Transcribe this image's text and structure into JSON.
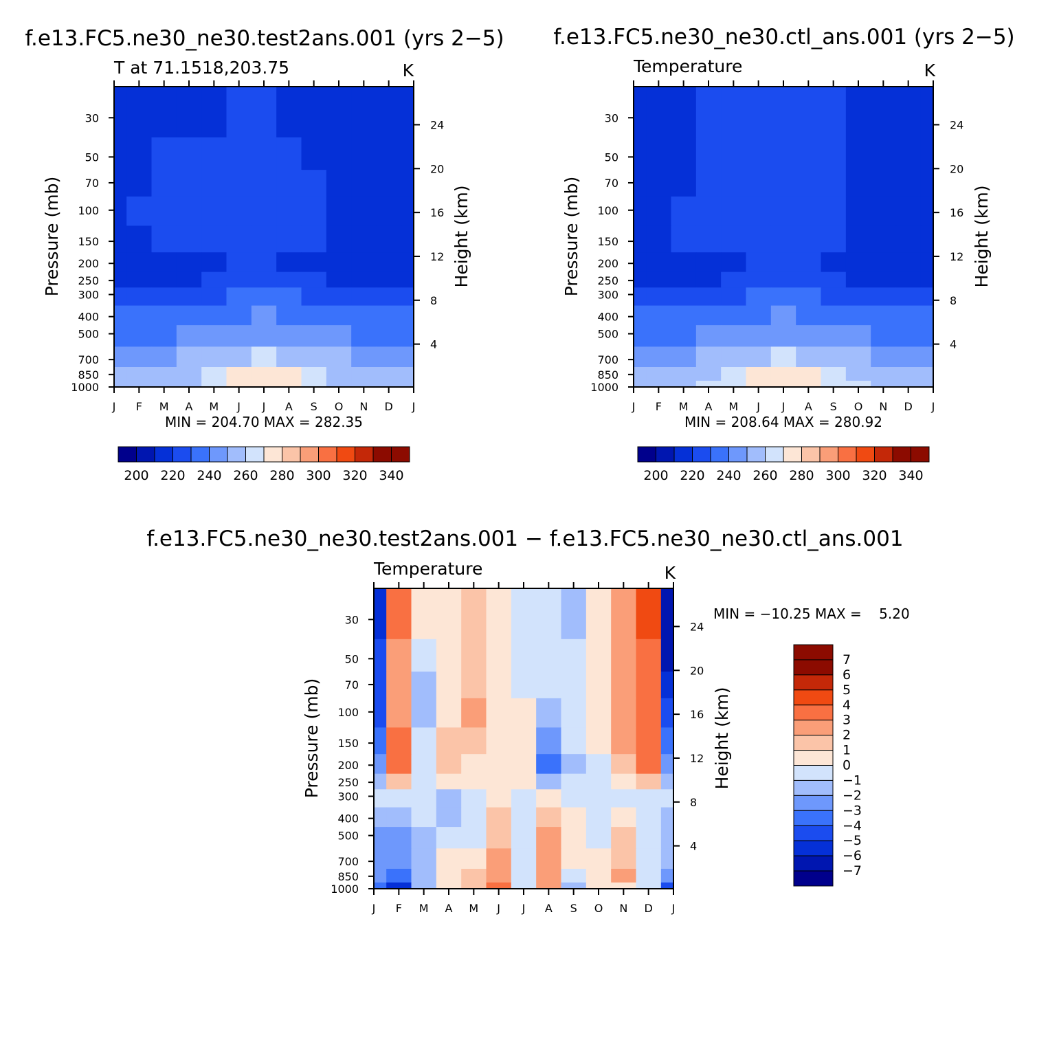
{
  "colors": {
    "fill_levels": [
      "#00008c",
      "#0016b0",
      "#0530d7",
      "#1b4cef",
      "#3a72fb",
      "#6e98fc",
      "#a1bdfc",
      "#d2e3fc",
      "#fde6d6",
      "#fbc4a8",
      "#fa9e78",
      "#f97042",
      "#f04a12",
      "#c42808",
      "#8c0b00"
    ]
  },
  "chart_data": [
    {
      "id": "test",
      "type": "heatmap",
      "title": "f.e13.FC5.ne30_ne30.test2ans.001 (yrs 2−5)",
      "left_string": "T at 71.1518,203.75",
      "right_string": "K",
      "xlabel": "",
      "ylabel": "Pressure (mb)",
      "ylabel_right": "Height (km)",
      "x_ticks": [
        "J",
        "F",
        "M",
        "A",
        "M",
        "J",
        "J",
        "A",
        "S",
        "O",
        "N",
        "D",
        "J"
      ],
      "y_ticks": [
        "30",
        "50",
        "70",
        "100",
        "150",
        "200",
        "250",
        "300",
        "400",
        "500",
        "700",
        "850",
        "1000"
      ],
      "y_ticks_right": [
        "24",
        "20",
        "16",
        "12",
        "8",
        "4"
      ],
      "ylim": [
        1000,
        20
      ],
      "min_max_text": "MIN = 204.70  MAX = 282.35",
      "min": 204.7,
      "max": 282.35,
      "levels": [
        200,
        210,
        220,
        230,
        240,
        250,
        260,
        270,
        280,
        290,
        300,
        310,
        320,
        330,
        340
      ],
      "colorbar_labels": [
        "200",
        "220",
        "240",
        "260",
        "280",
        "300",
        "320",
        "340"
      ],
      "color_by_level": [
        "#00008c",
        "#0016b0",
        "#0530d7",
        "#1b4cef",
        "#3a72fb",
        "#6e98fc",
        "#a1bdfc",
        "#d2e3fc",
        "#fde6d6",
        "#fbc4a8",
        "#fa9e78",
        "#f97042",
        "#f04a12",
        "#c42808",
        "#8c0b00",
        "#8c0b00"
      ],
      "z": [
        [
          211,
          216,
          218,
          218,
          219,
          220,
          220,
          219,
          219,
          218,
          218,
          218,
          217
        ],
        [
          214,
          219,
          220,
          220,
          220,
          221,
          221,
          220,
          219,
          218,
          218,
          218,
          215
        ],
        [
          215,
          219,
          220,
          221,
          221,
          222,
          222,
          221,
          220,
          219,
          219,
          219,
          218
        ],
        [
          217,
          220,
          221,
          221,
          221,
          222,
          222,
          221,
          220,
          219,
          219,
          219,
          218
        ],
        [
          218,
          219,
          220,
          221,
          221,
          221,
          221,
          221,
          221,
          219,
          219,
          219,
          218
        ],
        [
          218,
          218,
          218,
          219,
          219,
          221,
          221,
          219,
          218,
          218,
          218,
          218,
          218
        ],
        [
          219,
          219,
          219,
          219,
          221,
          222,
          222,
          222,
          221,
          219,
          219,
          219,
          219
        ],
        [
          222,
          222,
          222,
          224,
          227,
          230,
          231,
          230,
          227,
          224,
          222,
          222,
          222
        ],
        [
          231,
          231,
          231,
          233,
          236,
          239,
          240,
          239,
          236,
          233,
          231,
          231,
          231
        ],
        [
          238,
          238,
          238,
          240,
          243,
          245,
          246,
          245,
          243,
          240,
          238,
          238,
          238
        ],
        [
          248,
          248,
          248,
          250,
          254,
          259,
          262,
          259,
          254,
          250,
          248,
          248,
          248
        ],
        [
          254,
          254,
          254,
          256,
          263,
          271,
          274,
          270,
          263,
          256,
          254,
          254,
          254
        ],
        [
          256,
          256,
          256,
          258,
          265,
          274,
          277,
          273,
          265,
          258,
          256,
          256,
          256
        ]
      ]
    },
    {
      "id": "ctl",
      "type": "heatmap",
      "title": "f.e13.FC5.ne30_ne30.ctl_ans.001 (yrs 2−5)",
      "left_string": "Temperature",
      "right_string": "K",
      "xlabel": "",
      "ylabel": "Pressure (mb)",
      "ylabel_right": "Height (km)",
      "x_ticks": [
        "J",
        "F",
        "M",
        "A",
        "M",
        "J",
        "J",
        "A",
        "S",
        "O",
        "N",
        "D",
        "J"
      ],
      "y_ticks": [
        "30",
        "50",
        "70",
        "100",
        "150",
        "200",
        "250",
        "300",
        "400",
        "500",
        "700",
        "850",
        "1000"
      ],
      "y_ticks_right": [
        "24",
        "20",
        "16",
        "12",
        "8",
        "4"
      ],
      "ylim": [
        1000,
        20
      ],
      "min_max_text": "MIN = 208.64  MAX = 280.92",
      "min": 208.64,
      "max": 280.92,
      "levels": [
        200,
        210,
        220,
        230,
        240,
        250,
        260,
        270,
        280,
        290,
        300,
        310,
        320,
        330,
        340
      ],
      "colorbar_labels": [
        "200",
        "220",
        "240",
        "260",
        "280",
        "300",
        "320",
        "340"
      ],
      "color_by_level": [
        "#00008c",
        "#0016b0",
        "#0530d7",
        "#1b4cef",
        "#3a72fb",
        "#6e98fc",
        "#a1bdfc",
        "#d2e3fc",
        "#fde6d6",
        "#fbc4a8",
        "#fa9e78",
        "#f97042",
        "#f04a12",
        "#c42808",
        "#8c0b00",
        "#8c0b00"
      ],
      "z": [
        [
          217,
          213,
          218,
          221,
          221,
          221,
          222,
          222,
          221,
          218,
          218,
          218,
          218
        ],
        [
          218,
          214,
          219,
          221,
          221,
          222,
          222,
          222,
          221,
          218,
          218,
          218,
          218
        ],
        [
          218,
          216,
          219,
          221,
          221,
          222,
          222,
          222,
          221,
          219,
          219,
          219,
          218
        ],
        [
          218,
          219,
          220,
          221,
          221,
          222,
          222,
          222,
          221,
          219,
          219,
          219,
          218
        ],
        [
          218,
          219,
          220,
          220,
          221,
          221,
          221,
          221,
          221,
          219,
          219,
          219,
          218
        ],
        [
          218,
          218,
          218,
          219,
          219,
          221,
          221,
          220,
          218,
          218,
          218,
          218,
          218
        ],
        [
          219,
          219,
          219,
          219,
          221,
          222,
          222,
          222,
          221,
          219,
          219,
          219,
          219
        ],
        [
          222,
          222,
          222,
          224,
          227,
          230,
          231,
          230,
          227,
          224,
          222,
          222,
          222
        ],
        [
          231,
          231,
          231,
          233,
          236,
          239,
          240,
          239,
          236,
          233,
          231,
          231,
          231
        ],
        [
          238,
          238,
          238,
          240,
          243,
          245,
          246,
          245,
          243,
          240,
          238,
          238,
          238
        ],
        [
          248,
          248,
          248,
          250,
          254,
          259,
          262,
          259,
          254,
          250,
          248,
          248,
          248
        ],
        [
          254,
          254,
          254,
          258,
          266,
          272,
          274,
          271,
          266,
          258,
          254,
          254,
          254
        ],
        [
          256,
          256,
          256,
          260,
          268,
          275,
          277,
          275,
          268,
          260,
          256,
          256,
          256
        ]
      ]
    },
    {
      "id": "diff",
      "type": "heatmap",
      "title": "f.e13.FC5.ne30_ne30.test2ans.001 − f.e13.FC5.ne30_ne30.ctl_ans.001",
      "left_string": "Temperature",
      "right_string": "K",
      "xlabel": "",
      "ylabel": "Pressure (mb)",
      "ylabel_right": "Height (km)",
      "x_ticks": [
        "J",
        "F",
        "M",
        "A",
        "M",
        "J",
        "J",
        "A",
        "S",
        "O",
        "N",
        "D",
        "J"
      ],
      "y_ticks": [
        "30",
        "50",
        "70",
        "100",
        "150",
        "200",
        "250",
        "300",
        "400",
        "500",
        "700",
        "850",
        "1000"
      ],
      "y_ticks_right": [
        "24",
        "20",
        "16",
        "12",
        "8",
        "4"
      ],
      "ylim": [
        1000,
        20
      ],
      "min_max_text": "MIN = −10.25 MAX =    5.20",
      "min": -10.25,
      "max": 5.2,
      "levels": [
        -7,
        -6,
        -5,
        -4,
        -3,
        -2,
        -1,
        0,
        1,
        2,
        3,
        4,
        5,
        6,
        7
      ],
      "colorbar_labels": [
        "7",
        "6",
        "5",
        "4",
        "3",
        "2",
        "1",
        "0",
        "−1",
        "−2",
        "−3",
        "−4",
        "−5",
        "−6",
        "−7"
      ],
      "color_by_level": [
        "#00008c",
        "#0016b0",
        "#0530d7",
        "#1b4cef",
        "#3a72fb",
        "#6e98fc",
        "#a1bdfc",
        "#d2e3fc",
        "#fde6d6",
        "#fbc4a8",
        "#fa9e78",
        "#f97042",
        "#f04a12",
        "#c42808",
        "#8c0b00",
        "#8c0b00"
      ],
      "z": [
        [
          -6.0,
          3.2,
          0.2,
          0.5,
          1.3,
          0.6,
          -0.3,
          -0.8,
          -1.2,
          0.4,
          2.8,
          4.0,
          -7.0
        ],
        [
          -5.0,
          2.8,
          -0.5,
          0.5,
          1.6,
          0.5,
          -0.2,
          -0.6,
          -1.0,
          0.6,
          2.8,
          3.6,
          -6.5
        ],
        [
          -4.6,
          2.4,
          -1.8,
          0.6,
          1.9,
          0.4,
          -0.1,
          -0.5,
          -0.8,
          0.7,
          2.7,
          3.4,
          -6.0
        ],
        [
          -4.2,
          2.5,
          -1.6,
          0.8,
          2.0,
          0.3,
          0.2,
          -1.6,
          -0.4,
          0.5,
          2.3,
          3.2,
          -5.0
        ],
        [
          -3.6,
          3.0,
          -1.0,
          1.6,
          1.2,
          0.5,
          0.2,
          -2.2,
          -0.6,
          0.1,
          2.0,
          3.0,
          -4.0
        ],
        [
          -3.0,
          3.6,
          -0.6,
          1.5,
          0.8,
          0.5,
          0.1,
          -3.2,
          -1.2,
          -0.2,
          1.8,
          3.8,
          -3.0
        ],
        [
          -1.2,
          1.6,
          -0.4,
          0.4,
          0.3,
          0.3,
          0.2,
          -1.2,
          -0.6,
          -0.3,
          0.8,
          1.6,
          -1.6
        ],
        [
          -0.8,
          -0.6,
          -0.6,
          -1.4,
          -0.3,
          0.5,
          -0.1,
          0.2,
          -0.2,
          -0.2,
          -0.2,
          -0.6,
          -1.0
        ],
        [
          -1.6,
          -1.6,
          -1.0,
          -1.6,
          -0.6,
          1.2,
          -0.4,
          1.6,
          0.3,
          -0.6,
          0.6,
          -0.3,
          -1.4
        ],
        [
          -2.2,
          -2.4,
          -1.2,
          -1.0,
          -0.8,
          1.6,
          -0.4,
          2.0,
          0.4,
          -0.2,
          1.2,
          -0.2,
          -1.6
        ],
        [
          -2.4,
          -2.4,
          -1.6,
          0.6,
          0.6,
          2.4,
          -0.3,
          2.2,
          0.6,
          0.6,
          1.6,
          -0.4,
          -1.8
        ],
        [
          -3.0,
          -4.0,
          -1.2,
          0.4,
          1.0,
          2.6,
          -0.6,
          2.6,
          -0.9,
          0.8,
          2.2,
          -0.4,
          -3.0
        ],
        [
          -4.0,
          -6.0,
          -2.0,
          0.5,
          1.4,
          3.2,
          -0.8,
          2.8,
          -1.1,
          0.8,
          0.8,
          -1.0,
          -5.0
        ]
      ]
    }
  ]
}
